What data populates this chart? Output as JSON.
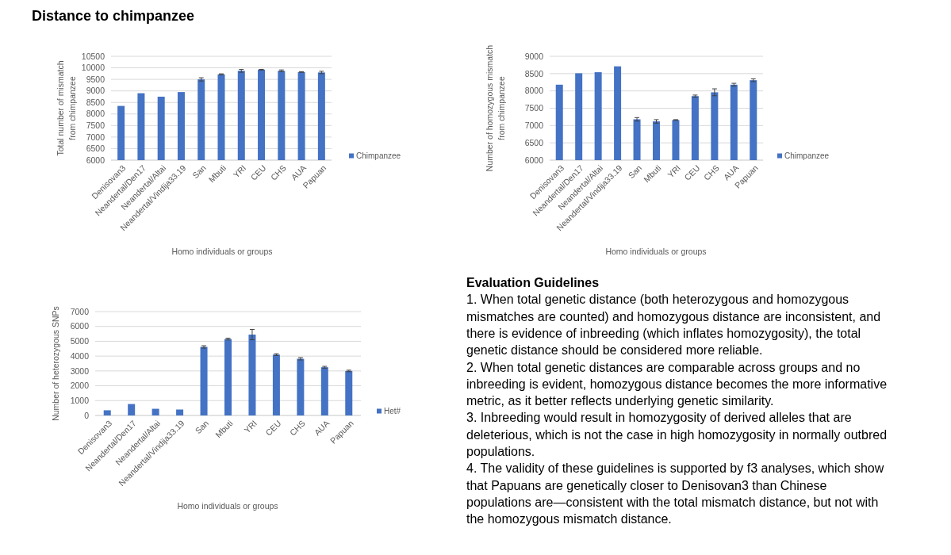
{
  "chart_data": [
    {
      "type": "bar",
      "title": "Distance to chimpanzee",
      "xlabel": "Homo individuals or groups",
      "ylabel": "Total number of mismatch\nfrom chimpanzee",
      "categories": [
        "Denisovan3",
        "Neandertal/Den17",
        "Neandertal/Altai",
        "Neandertal/Vindija33.19",
        "San",
        "Mbuti",
        "YRI",
        "CEU",
        "CHS",
        "AUA",
        "Papuan"
      ],
      "series": [
        {
          "name": "Chimpanzee",
          "color": "#4472c4",
          "values": [
            8350,
            8900,
            8750,
            8950,
            9500,
            9720,
            9870,
            9920,
            9870,
            9820,
            9800
          ],
          "errors": [
            null,
            null,
            null,
            null,
            70,
            20,
            60,
            15,
            40,
            15,
            50
          ]
        }
      ],
      "ylim": [
        6000,
        10500
      ],
      "yticks": [
        6000,
        6500,
        7000,
        7500,
        8000,
        8500,
        9000,
        9500,
        10000,
        10500
      ],
      "grid": "y",
      "legend": "right"
    },
    {
      "type": "bar",
      "xlabel": "Homo individuals or groups",
      "ylabel": "Number of homozygous mismatch\nfrom chimpanzee",
      "categories": [
        "Denisovan3",
        "Neandertal/Den17",
        "Neandertal/Altai",
        "Neandertal/Vindija33.19",
        "San",
        "Mbuti",
        "YRI",
        "CEU",
        "CHS",
        "AUA",
        "Papuan"
      ],
      "series": [
        {
          "name": "Chimpanzee",
          "color": "#4472c4",
          "values": [
            8180,
            8510,
            8540,
            8710,
            7180,
            7120,
            7160,
            7850,
            7960,
            8180,
            8310
          ],
          "errors": [
            null,
            null,
            null,
            null,
            50,
            50,
            10,
            30,
            100,
            40,
            40
          ]
        }
      ],
      "ylim": [
        6000,
        9000
      ],
      "yticks": [
        6000,
        6500,
        7000,
        7500,
        8000,
        8500,
        9000
      ],
      "grid": "y",
      "legend": "right"
    },
    {
      "type": "bar",
      "xlabel": "Homo individuals or groups",
      "ylabel": "Number of heterozygous SNPs",
      "categories": [
        "Denisovan3",
        "Neandertal/Den17",
        "Neandertal/Altai",
        "Neandertal/Vindija33.19",
        "San",
        "Mbuti",
        "YRI",
        "CEU",
        "CHS",
        "AUA",
        "Papuan"
      ],
      "series": [
        {
          "name": "Het#",
          "color": "#4472c4",
          "values": [
            350,
            770,
            450,
            400,
            4620,
            5150,
            5450,
            4100,
            3820,
            3250,
            3000
          ],
          "errors": [
            null,
            null,
            null,
            null,
            80,
            60,
            350,
            60,
            80,
            60,
            50
          ]
        }
      ],
      "ylim": [
        0,
        7000
      ],
      "yticks": [
        0,
        1000,
        2000,
        3000,
        4000,
        5000,
        6000,
        7000
      ],
      "grid": "y",
      "legend": "right"
    },
    {
      "type": "other",
      "title": "Evaluation Guidelines",
      "annotations": [
        "1. When total genetic distance (both heterozygous and homozygous mismatches are counted) and homozygous distance are inconsistent, and there is evidence of inbreeding (which inflates homozygosity), the total genetic distance should be considered more reliable.",
        "2. When total genetic distances are comparable across groups and no inbreeding is evident, homozygous distance becomes the more informative metric, as it better reflects underlying genetic similarity.",
        "3. Inbreeding would result in homozygosity of derived alleles that are deleterious, which is not the case in high homozygosity in normally outbred populations.",
        "4. The validity of these guidelines is supported by f3 analyses, which show that Papuans are genetically closer to Denisovan3 than Chinese populations are—consistent with the total mismatch distance, but not with the homozygous mismatch distance."
      ]
    }
  ]
}
